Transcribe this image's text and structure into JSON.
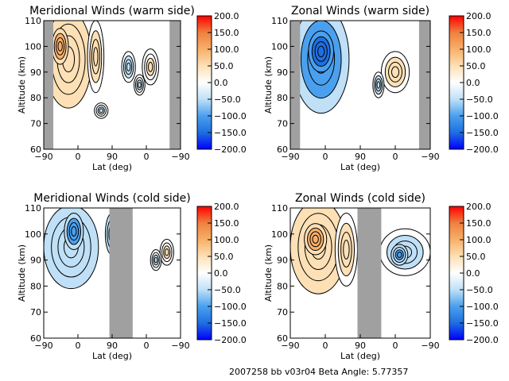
{
  "footer": "2007258 bb v03r04   Beta Angle: 5.77357",
  "colorbar_ticks": [
    "200.0",
    "150.0",
    "100.0",
    "50.0",
    "0.0",
    "−50.0",
    "−100.0",
    "−150.0",
    "−200.0"
  ],
  "colors": {
    "cmap": [
      "#0000ff",
      "#1f6fe0",
      "#4aa0ee",
      "#bfe0f7",
      "#ffffff",
      "#fde0b5",
      "#f7b06a",
      "#f08040",
      "#ff0000"
    ],
    "gap": "#a0a0a0",
    "contour": "#000000"
  },
  "chart_data": [
    {
      "type": "heatmap",
      "title": "Meridional Winds (warm side)",
      "xlabel": "Lat (deg)",
      "ylabel": "Altitude (km)",
      "x_ticks": [
        "−90",
        "0",
        "90",
        "0",
        "−90"
      ],
      "y_ticks": [
        "60",
        "70",
        "80",
        "90",
        "100",
        "110"
      ],
      "ylim": [
        60,
        110
      ],
      "clim": [
        -200,
        200
      ],
      "gaps": [
        [
          0,
          0.07
        ],
        [
          0.92,
          1.0
        ]
      ],
      "blobs": [
        {
          "x": 0.18,
          "y": 95,
          "rx": 0.17,
          "ry": 19,
          "v": 60
        },
        {
          "x": 0.12,
          "y": 100,
          "rx": 0.06,
          "ry": 7,
          "v": 100
        },
        {
          "x": 0.38,
          "y": 96,
          "rx": 0.06,
          "ry": 14,
          "v": 40
        },
        {
          "x": 0.42,
          "y": 75,
          "rx": 0.05,
          "ry": 3,
          "v": -30
        },
        {
          "x": 0.62,
          "y": 92,
          "rx": 0.05,
          "ry": 6,
          "v": -40
        },
        {
          "x": 0.78,
          "y": 92,
          "rx": 0.06,
          "ry": 7,
          "v": 30
        },
        {
          "x": 0.7,
          "y": 85,
          "rx": 0.04,
          "ry": 4,
          "v": -30
        }
      ]
    },
    {
      "type": "heatmap",
      "title": "Zonal Winds (warm side)",
      "xlabel": "Lat (deg)",
      "ylabel": "Altitude (km)",
      "x_ticks": [
        "−90",
        "0",
        "90",
        "0",
        "−90"
      ],
      "y_ticks": [
        "60",
        "70",
        "80",
        "90",
        "100",
        "110"
      ],
      "ylim": [
        60,
        110
      ],
      "clim": [
        -200,
        200
      ],
      "gaps": [
        [
          0,
          0.07
        ],
        [
          0.92,
          1.0
        ]
      ],
      "blobs": [
        {
          "x": 0.22,
          "y": 95,
          "rx": 0.2,
          "ry": 21,
          "v": -120
        },
        {
          "x": 0.22,
          "y": 98,
          "rx": 0.09,
          "ry": 8,
          "v": -170
        },
        {
          "x": 0.75,
          "y": 90,
          "rx": 0.1,
          "ry": 8,
          "v": 40
        },
        {
          "x": 0.63,
          "y": 85,
          "rx": 0.04,
          "ry": 5,
          "v": -40
        }
      ]
    },
    {
      "type": "heatmap",
      "title": "Meridional Winds (cold side)",
      "xlabel": "Lat (deg)",
      "ylabel": "Altitude (km)",
      "x_ticks": [
        "−90",
        "0",
        "90",
        "0",
        "−90"
      ],
      "y_ticks": [
        "60",
        "70",
        "80",
        "90",
        "100",
        "110"
      ],
      "ylim": [
        60,
        110
      ],
      "clim": [
        -200,
        200
      ],
      "gaps": [
        [
          0.48,
          0.65
        ]
      ],
      "blobs": [
        {
          "x": 0.2,
          "y": 95,
          "rx": 0.2,
          "ry": 16,
          "v": -70
        },
        {
          "x": 0.22,
          "y": 101,
          "rx": 0.07,
          "ry": 7,
          "v": -120
        },
        {
          "x": 0.5,
          "y": 100,
          "rx": 0.05,
          "ry": 8,
          "v": -50
        },
        {
          "x": 0.9,
          "y": 93,
          "rx": 0.05,
          "ry": 5,
          "v": 30
        },
        {
          "x": 0.82,
          "y": 90,
          "rx": 0.04,
          "ry": 4,
          "v": -30
        }
      ]
    },
    {
      "type": "heatmap",
      "title": "Zonal Winds (cold side)",
      "xlabel": "Lat (deg)",
      "ylabel": "Altitude (km)",
      "x_ticks": [
        "−90",
        "0",
        "90",
        "0",
        "−90"
      ],
      "y_ticks": [
        "60",
        "70",
        "80",
        "90",
        "100",
        "110"
      ],
      "ylim": [
        60,
        110
      ],
      "clim": [
        -200,
        200
      ],
      "gaps": [
        [
          0.48,
          0.65
        ]
      ],
      "blobs": [
        {
          "x": 0.2,
          "y": 95,
          "rx": 0.2,
          "ry": 18,
          "v": 70
        },
        {
          "x": 0.18,
          "y": 98,
          "rx": 0.08,
          "ry": 6,
          "v": 110
        },
        {
          "x": 0.4,
          "y": 94,
          "rx": 0.08,
          "ry": 14,
          "v": 40
        },
        {
          "x": 0.82,
          "y": 93,
          "rx": 0.18,
          "ry": 9,
          "v": -40
        },
        {
          "x": 0.78,
          "y": 92,
          "rx": 0.06,
          "ry": 4,
          "v": -90
        }
      ]
    }
  ]
}
